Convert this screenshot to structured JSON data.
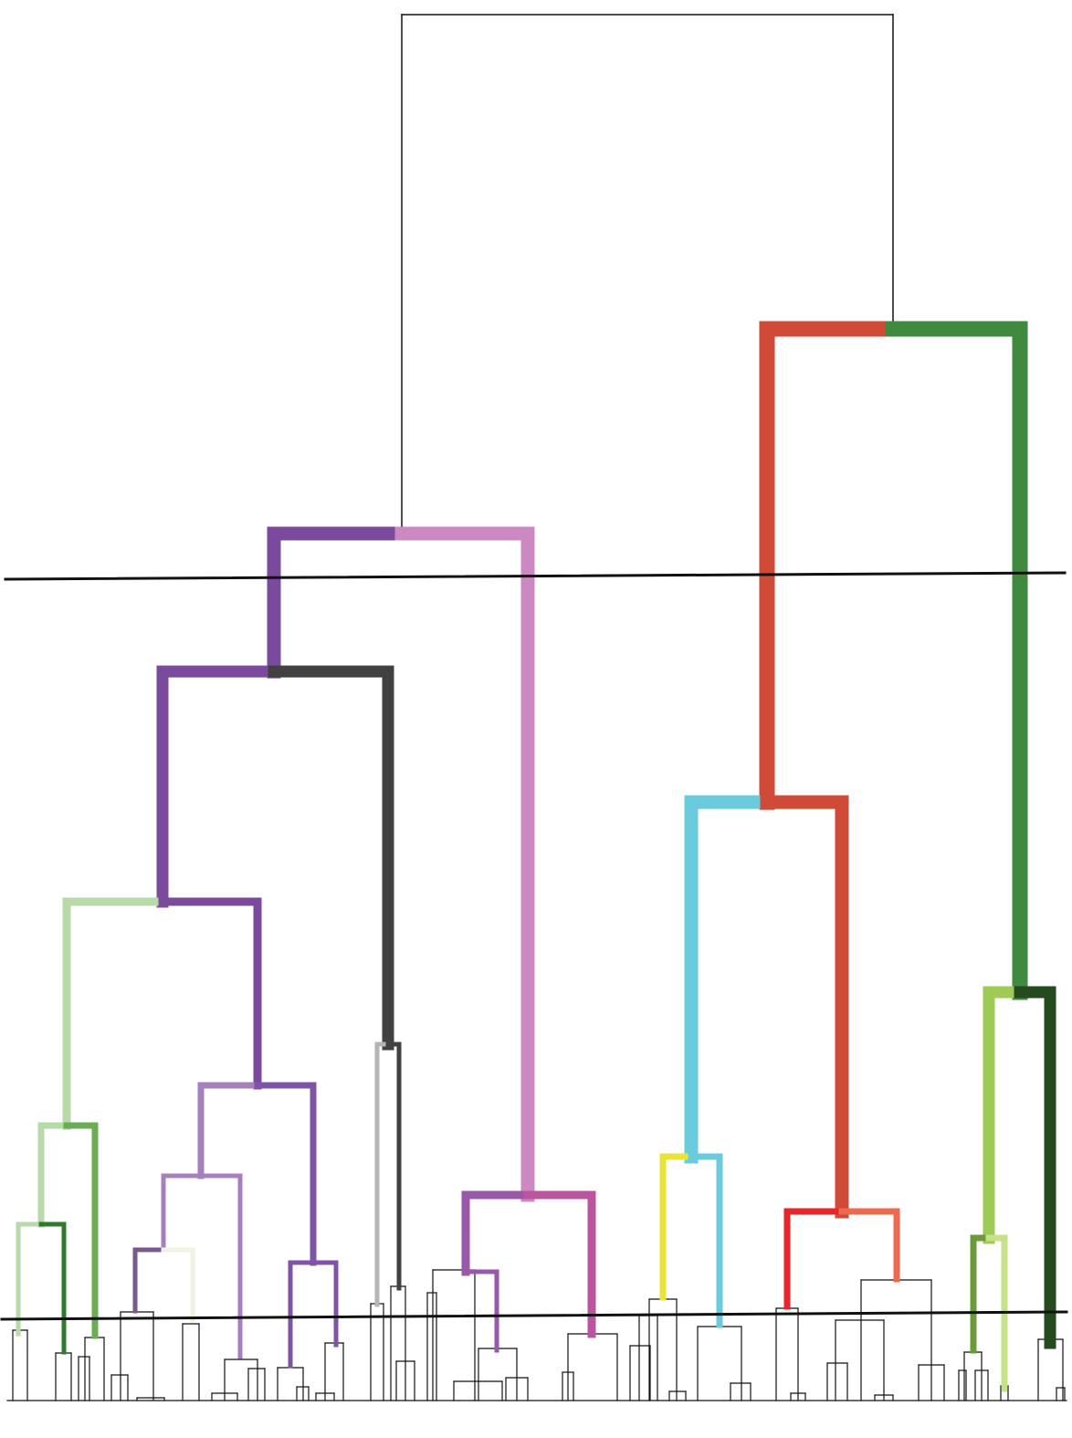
{
  "diagram": {
    "type": "dendrogram",
    "colors": {
      "root": "#111111",
      "red_clade": "#cf4a37",
      "green_clade": "#3f8a3e",
      "purple": "#7a4a9c",
      "pink": "#cc88c0",
      "dark_gray": "#414141",
      "light_green": "#b8d9a8",
      "mid_green": "#6aad55",
      "dark_green": "#2f7a2e",
      "lavender": "#a580bc",
      "violet": "#7e54a6",
      "muted_purple": "#765a8e",
      "cream": "#f1f3e2",
      "light_gray": "#b5b5b5",
      "magenta_purple": "#9a58a8",
      "magenta": "#bb55a0",
      "cyan": "#6acbdd",
      "yellow": "#e8e43a",
      "bright_red": "#e8262a",
      "salmon": "#ec6a50",
      "yellow_green": "#9ecb56",
      "very_dark_green": "#244a1e",
      "olive_green": "#6b9a3a",
      "pale_yellow_green": "#c7e08a",
      "cut_line": "#111111"
    },
    "cut_lines_count": 2
  }
}
